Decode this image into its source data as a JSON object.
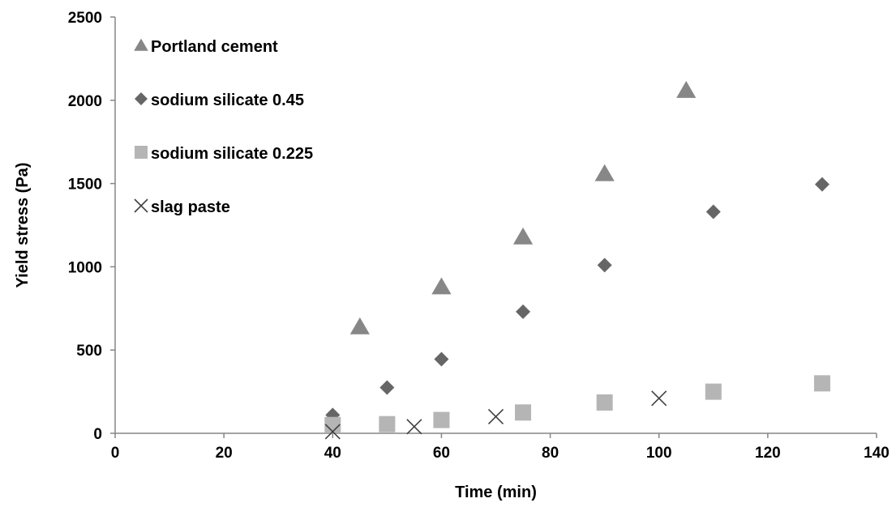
{
  "chart_data": {
    "type": "scatter",
    "xlabel": "Time (min)",
    "ylabel": "Yield stress (Pa)",
    "xlim": [
      0,
      140
    ],
    "ylim": [
      0,
      2500
    ],
    "x_ticks": [
      0,
      20,
      40,
      60,
      80,
      100,
      120,
      140
    ],
    "y_ticks": [
      0,
      500,
      1000,
      1500,
      2000,
      2500
    ],
    "grid": false,
    "legend_position": "top-left",
    "series": [
      {
        "name": "Portland cement",
        "marker": "triangle",
        "color": "#878787",
        "x": [
          45,
          60,
          75,
          90,
          105
        ],
        "y": [
          640,
          880,
          1180,
          1560,
          2060
        ]
      },
      {
        "name": "sodium silicate 0.45",
        "marker": "diamond",
        "color": "#666666",
        "x": [
          40,
          50,
          60,
          75,
          90,
          110,
          130
        ],
        "y": [
          110,
          275,
          445,
          730,
          1010,
          1330,
          1495
        ]
      },
      {
        "name": "sodium silicate 0.225",
        "marker": "square",
        "color": "#b5b5b5",
        "x": [
          40,
          50,
          60,
          75,
          90,
          110,
          130
        ],
        "y": [
          50,
          55,
          80,
          125,
          185,
          250,
          300
        ]
      },
      {
        "name": "slag paste",
        "marker": "cross",
        "color": "#404040",
        "x": [
          40,
          55,
          70,
          100
        ],
        "y": [
          10,
          40,
          100,
          210
        ]
      }
    ]
  }
}
